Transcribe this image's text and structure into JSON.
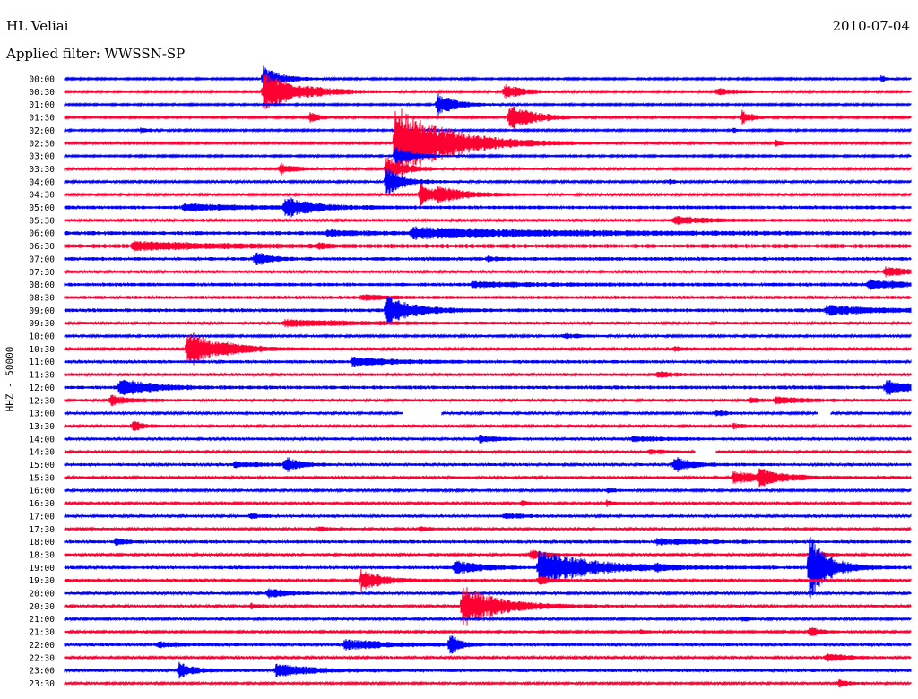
{
  "header": {
    "station": "HL Veliai",
    "date": "2010-07-04",
    "filter": "Applied filter: WWSSN-SP"
  },
  "chart_data": {
    "type": "line",
    "title": "HL Veliai",
    "subtitle": "Applied filter: WWSSN-SP",
    "date": "2010-07-04",
    "ylabel": "HHZ - 50000",
    "xlabel": "",
    "grid": false,
    "legend": "none",
    "colors": {
      "even_rows": "#0000ff",
      "odd_rows": "#ff0033"
    },
    "row_labels": [
      "00:00",
      "00:30",
      "01:00",
      "01:30",
      "02:00",
      "02:30",
      "03:00",
      "03:30",
      "04:00",
      "04:30",
      "05:00",
      "05:30",
      "06:00",
      "06:30",
      "07:00",
      "07:30",
      "08:00",
      "08:30",
      "09:00",
      "09:30",
      "10:00",
      "10:30",
      "11:00",
      "11:30",
      "12:00",
      "12:30",
      "13:00",
      "13:30",
      "14:00",
      "14:30",
      "15:00",
      "15:30",
      "16:00",
      "16:30",
      "17:00",
      "17:30",
      "18:00",
      "18:30",
      "19:00",
      "19:30",
      "20:00",
      "20:30",
      "21:00",
      "21:30",
      "22:00",
      "22:30",
      "23:00",
      "23:30"
    ],
    "row_minutes": 30,
    "rows": [
      {
        "noise": 1,
        "events": [
          [
            0.235,
            14,
            20
          ],
          [
            0.965,
            4,
            6
          ]
        ]
      },
      {
        "noise": 1,
        "events": [
          [
            0.235,
            22,
            40
          ],
          [
            0.52,
            9,
            20
          ],
          [
            0.77,
            4,
            30
          ]
        ]
      },
      {
        "noise": 1,
        "events": [
          [
            0.44,
            14,
            20
          ]
        ]
      },
      {
        "noise": 1,
        "events": [
          [
            0.29,
            7,
            10
          ],
          [
            0.525,
            17,
            26
          ],
          [
            0.8,
            9,
            12
          ]
        ]
      },
      {
        "noise": 1,
        "events": [
          [
            0.09,
            3,
            10
          ],
          [
            0.79,
            3,
            6
          ]
        ]
      },
      {
        "noise": 1.2,
        "events": [
          [
            0.39,
            46,
            55
          ],
          [
            0.84,
            3,
            12
          ]
        ]
      },
      {
        "noise": 1,
        "events": [
          [
            0.39,
            12,
            20
          ]
        ]
      },
      {
        "noise": 1.2,
        "events": [
          [
            0.255,
            7,
            16
          ],
          [
            0.38,
            14,
            20
          ]
        ]
      },
      {
        "noise": 1.2,
        "events": [
          [
            0.38,
            16,
            20
          ],
          [
            0.715,
            3,
            6
          ]
        ]
      },
      {
        "noise": 1.2,
        "events": [
          [
            0.42,
            14,
            20
          ],
          [
            0.44,
            6,
            40
          ]
        ]
      },
      {
        "noise": 2,
        "events": [
          [
            0.26,
            12,
            30
          ],
          [
            0.14,
            4,
            60
          ]
        ]
      },
      {
        "noise": 1.6,
        "events": [
          [
            0.72,
            4,
            40
          ]
        ]
      },
      {
        "noise": 2.2,
        "events": [
          [
            0.41,
            6,
            160
          ],
          [
            0.31,
            3,
            40
          ]
        ]
      },
      {
        "noise": 2.4,
        "events": [
          [
            0.08,
            5,
            80
          ],
          [
            0.3,
            3,
            8
          ]
        ]
      },
      {
        "noise": 2,
        "events": [
          [
            0.225,
            10,
            14
          ],
          [
            0.5,
            3,
            8
          ]
        ]
      },
      {
        "noise": 1.6,
        "events": [
          [
            0.97,
            5,
            30
          ]
        ]
      },
      {
        "noise": 2,
        "events": [
          [
            0.48,
            3,
            60
          ],
          [
            0.95,
            5,
            40
          ]
        ]
      },
      {
        "noise": 1.8,
        "events": [
          [
            0.35,
            3,
            30
          ]
        ]
      },
      {
        "noise": 2,
        "events": [
          [
            0.38,
            16,
            30
          ],
          [
            0.9,
            5,
            60
          ]
        ]
      },
      {
        "noise": 1.6,
        "events": [
          [
            0.26,
            4,
            80
          ]
        ]
      },
      {
        "noise": 1.2,
        "events": [
          [
            0.59,
            3,
            20
          ]
        ]
      },
      {
        "noise": 1.4,
        "events": [
          [
            0.145,
            22,
            30
          ],
          [
            0.185,
            3,
            40
          ],
          [
            0.72,
            3,
            10
          ]
        ]
      },
      {
        "noise": 1.8,
        "events": [
          [
            0.34,
            5,
            50
          ]
        ]
      },
      {
        "noise": 1.6,
        "events": [
          [
            0.7,
            3,
            20
          ]
        ]
      },
      {
        "noise": 2,
        "events": [
          [
            0.065,
            12,
            30
          ],
          [
            0.97,
            8,
            30
          ]
        ]
      },
      {
        "noise": 1.6,
        "events": [
          [
            0.055,
            6,
            20
          ],
          [
            0.81,
            3,
            10
          ],
          [
            0.84,
            4,
            30
          ]
        ]
      },
      {
        "noise": 1.4,
        "events": [
          [
            0.77,
            4,
            10
          ]
        ],
        "gaps": [
          [
            0.4,
            0.445
          ],
          [
            0.89,
            0.905
          ]
        ]
      },
      {
        "noise": 1.4,
        "events": [
          [
            0.08,
            7,
            12
          ],
          [
            0.79,
            3,
            14
          ]
        ]
      },
      {
        "noise": 1.6,
        "events": [
          [
            0.49,
            4,
            20
          ],
          [
            0.67,
            3,
            40
          ]
        ]
      },
      {
        "noise": 1.4,
        "events": [
          [
            0.69,
            3,
            20
          ]
        ],
        "gaps": [
          [
            0.745,
            0.77
          ]
        ]
      },
      {
        "noise": 1.6,
        "events": [
          [
            0.26,
            10,
            14
          ],
          [
            0.72,
            9,
            20
          ],
          [
            0.2,
            3,
            30
          ]
        ]
      },
      {
        "noise": 1.6,
        "events": [
          [
            0.79,
            6,
            50
          ],
          [
            0.82,
            9,
            18
          ]
        ]
      },
      {
        "noise": 1.2,
        "events": [
          [
            0.64,
            3,
            10
          ]
        ]
      },
      {
        "noise": 1.4,
        "events": [
          [
            0.54,
            4,
            6
          ],
          [
            0.64,
            4,
            6
          ]
        ]
      },
      {
        "noise": 1.6,
        "events": [
          [
            0.22,
            3,
            10
          ],
          [
            0.52,
            3,
            20
          ]
        ]
      },
      {
        "noise": 1.4,
        "events": [
          [
            0.3,
            3,
            10
          ],
          [
            0.42,
            3,
            10
          ]
        ]
      },
      {
        "noise": 1.8,
        "events": [
          [
            0.06,
            4,
            10
          ],
          [
            0.7,
            3,
            60
          ]
        ]
      },
      {
        "noise": 1.4,
        "events": [
          [
            0.55,
            6,
            16
          ],
          [
            0.88,
            6,
            14
          ]
        ]
      },
      {
        "noise": 1.8,
        "events": [
          [
            0.46,
            8,
            30
          ],
          [
            0.56,
            20,
            60
          ],
          [
            0.7,
            5,
            6
          ],
          [
            0.88,
            40,
            20
          ]
        ]
      },
      {
        "noise": 1.6,
        "events": [
          [
            0.35,
            12,
            24
          ],
          [
            0.56,
            7,
            10
          ]
        ]
      },
      {
        "noise": 1.4,
        "events": [
          [
            0.24,
            6,
            20
          ]
        ]
      },
      {
        "noise": 1.4,
        "events": [
          [
            0.47,
            24,
            40
          ],
          [
            0.22,
            3,
            10
          ]
        ]
      },
      {
        "noise": 1.2,
        "events": [
          [
            0.8,
            3,
            10
          ]
        ]
      },
      {
        "noise": 1.2,
        "events": [
          [
            0.68,
            3,
            8
          ],
          [
            0.88,
            6,
            14
          ]
        ]
      },
      {
        "noise": 1.6,
        "events": [
          [
            0.33,
            6,
            50
          ],
          [
            0.455,
            14,
            10
          ],
          [
            0.11,
            3,
            30
          ]
        ]
      },
      {
        "noise": 1.4,
        "events": [
          [
            0.9,
            6,
            20
          ]
        ]
      },
      {
        "noise": 1.8,
        "events": [
          [
            0.135,
            10,
            14
          ],
          [
            0.25,
            7,
            40
          ]
        ]
      },
      {
        "noise": 1.2,
        "events": [
          [
            0.915,
            4,
            14
          ]
        ]
      }
    ]
  }
}
